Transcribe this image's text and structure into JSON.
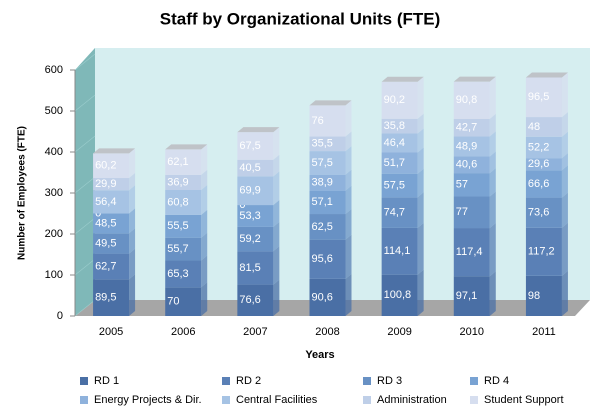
{
  "chart_data": {
    "type": "stacked_bar",
    "title": "Staff by Organizational Units (FTE)",
    "x_label": "Years",
    "y_label": "Number of Employees (FTE)",
    "categories": [
      "2005",
      "2006",
      "2007",
      "2008",
      "2009",
      "2010",
      "2011"
    ],
    "ylim": [
      0,
      600
    ],
    "yticks": [
      0,
      100,
      200,
      300,
      400,
      500,
      600
    ],
    "grid": true,
    "legend": "bottom",
    "series": [
      {
        "name": "RD 1",
        "color": "#4a6fa5",
        "values": [
          89.5,
          70,
          76.6,
          90.6,
          100.8,
          97.1,
          98
        ],
        "value_labels": [
          "89,5",
          "70",
          "76,6",
          "90,6",
          "100,8",
          "97,1",
          "98"
        ]
      },
      {
        "name": "RD 2",
        "color": "#5a80b6",
        "values": [
          62.7,
          65.3,
          81.5,
          95.6,
          114.1,
          117.4,
          117.2
        ],
        "value_labels": [
          "62,7",
          "65,3",
          "81,5",
          "95,6",
          "114,1",
          "117,4",
          "117,2"
        ]
      },
      {
        "name": "RD 3",
        "color": "#6891c4",
        "values": [
          49.5,
          55.7,
          59.2,
          62.5,
          74.7,
          77,
          73.6
        ],
        "value_labels": [
          "49,5",
          "55,7",
          "59,2",
          "62,5",
          "74,7",
          "77",
          "73,6"
        ]
      },
      {
        "name": "RD 4",
        "color": "#79a3d3",
        "values": [
          48.5,
          55.5,
          53.3,
          57.1,
          57.5,
          57,
          66.6
        ],
        "value_labels": [
          "48,5",
          "55,5",
          "53,3",
          "57,1",
          "57,5",
          "57",
          "66,6"
        ]
      },
      {
        "name": "Energy Projects & Dir.",
        "color": "#8fb2dc",
        "values": [
          0,
          null,
          0,
          38.9,
          51.7,
          40.6,
          29.6
        ],
        "value_labels": [
          "0",
          null,
          "0",
          "38,9",
          "51,7",
          "40,6",
          "29,6"
        ]
      },
      {
        "name": "Central Facilities",
        "color": "#a6c3e4",
        "values": [
          56.4,
          60.8,
          69.9,
          57.5,
          46.4,
          48.9,
          52.2
        ],
        "value_labels": [
          "56,4",
          "60,8",
          "69,9",
          "57,5",
          "46,4",
          "48,9",
          "52,2"
        ]
      },
      {
        "name": "Administration",
        "color": "#bfcfe8",
        "values": [
          29.9,
          36.9,
          40.5,
          35.5,
          35.8,
          42.7,
          48
        ],
        "value_labels": [
          "29,9",
          "36,9",
          "40,5",
          "35,5",
          "35,8",
          "42,7",
          "48"
        ]
      },
      {
        "name": "Student Support",
        "color": "#d6deef",
        "values": [
          60.2,
          62.1,
          67.5,
          76,
          90.2,
          90.8,
          96.5
        ],
        "value_labels": [
          "60,2",
          "62,1",
          "67,5",
          "76",
          "90,2",
          "90,8",
          "96,5"
        ]
      }
    ]
  }
}
